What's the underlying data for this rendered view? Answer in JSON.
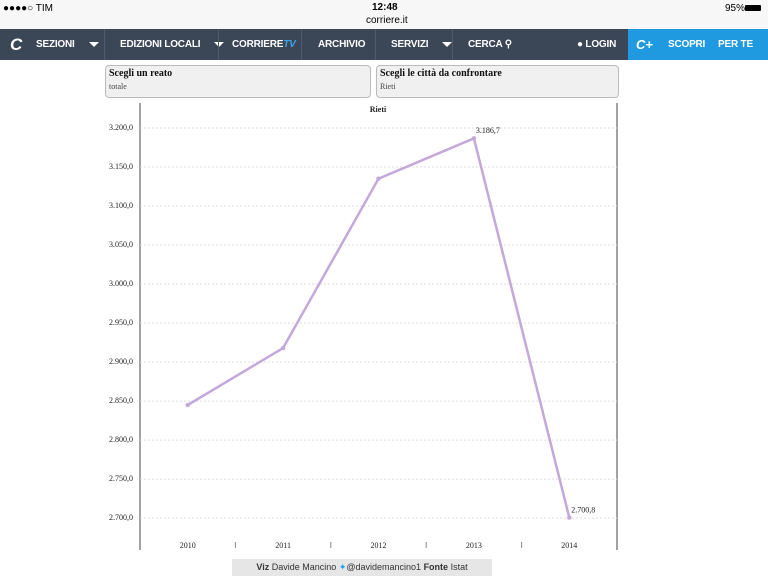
{
  "status_bar": {
    "carrier": "●●●●○ TIM",
    "time": "12:48",
    "url": "corriere.it",
    "battery": "95%"
  },
  "nav": {
    "items": [
      "SEZIONI",
      "EDIZIONI LOCALI",
      "CORRIERE",
      "TV",
      "ARCHIVIO",
      "SERVIZI",
      "CERCA",
      "LOGIN",
      "SCOPRI",
      "PER TE"
    ]
  },
  "selectors": [
    {
      "label": "Scegli un reato",
      "value": "totale"
    },
    {
      "label": "Scegli le città da confrontare",
      "value": "Rieti"
    }
  ],
  "chart_data": {
    "type": "line",
    "title": "Rieti",
    "categories": [
      "2010",
      "2011",
      "2012",
      "2013",
      "2014"
    ],
    "values": [
      2845,
      2918,
      3135,
      3186.7,
      2700.8
    ],
    "value_labels": [
      null,
      null,
      null,
      "3.186,7",
      "2.700,8"
    ],
    "color": "#c4a8dc",
    "ylim": [
      2672,
      3232
    ],
    "yticks": [
      {
        "value": 2700,
        "label": "2.700,0"
      },
      {
        "value": 2750,
        "label": "2.750,0"
      },
      {
        "value": 2800,
        "label": "2.800,0"
      },
      {
        "value": 2850,
        "label": "2.850,0"
      },
      {
        "value": 2900,
        "label": "2.900,0"
      },
      {
        "value": 2950,
        "label": "2.950,0"
      },
      {
        "value": 3000,
        "label": "3.000,0"
      },
      {
        "value": 3050,
        "label": "3.050,0"
      },
      {
        "value": 3100,
        "label": "3.100,0"
      },
      {
        "value": 3150,
        "label": "3.150,0"
      },
      {
        "value": 3200,
        "label": "3.200,0"
      }
    ],
    "grid": true
  },
  "footer": {
    "viz_label": "Viz",
    "author": "Davide Mancino",
    "handle": "@davidemancino1",
    "source_label": "Fonte",
    "source": "Istat"
  }
}
